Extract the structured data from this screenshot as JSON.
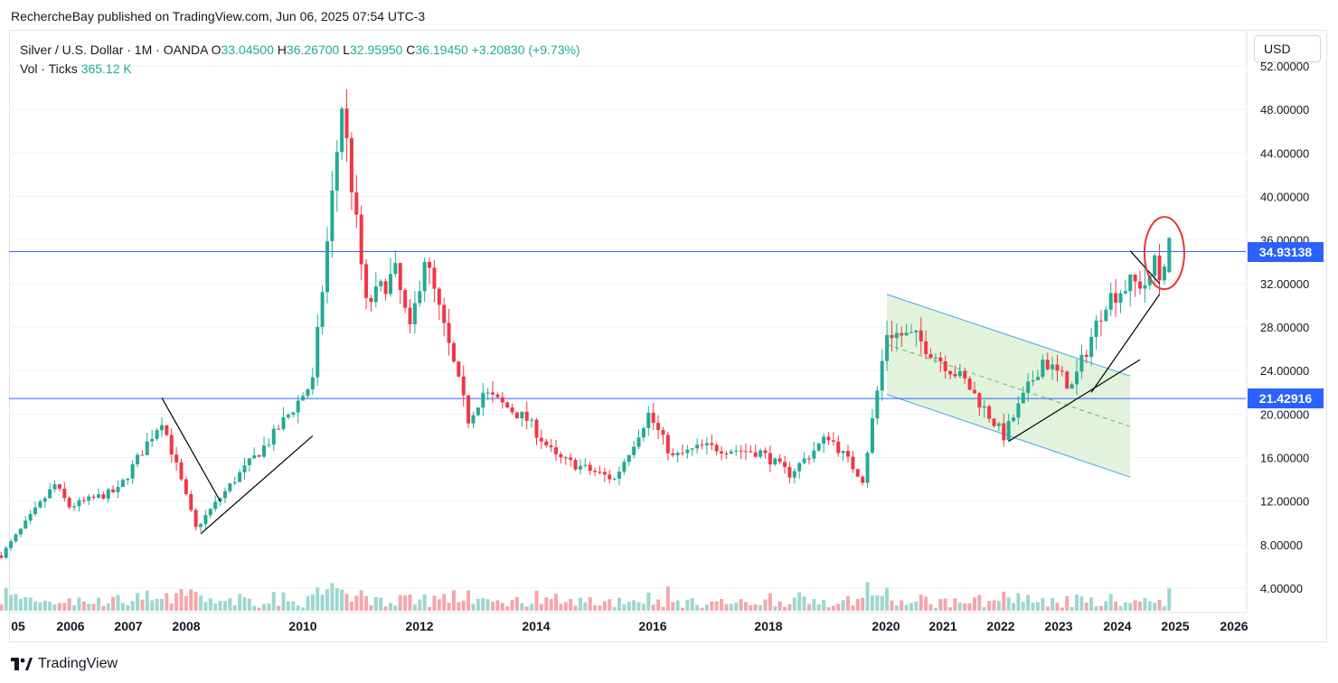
{
  "header": {
    "published": "RechercheBay published on TradingView.com, Jun 06, 2025 07:54 UTC-3"
  },
  "legend": {
    "symbol": "Silver / U.S. Dollar · 1M · OANDA",
    "o_label": "O",
    "o_value": "33.04500",
    "h_label": "H",
    "h_value": "36.26700",
    "l_label": "L",
    "l_value": "32.95950",
    "c_label": "C",
    "c_value": "36.19450",
    "change": "+3.20830 (+9.73%)",
    "vol_label": "Vol · Ticks",
    "vol_value": "365.12 K"
  },
  "currency_button": "USD",
  "footer": {
    "brand": "TradingView"
  },
  "colors": {
    "up": "#22ab94",
    "down": "#f23645",
    "vol_up": "#9ed7cf",
    "vol_down": "#f5a6ab",
    "hline": "#2962ff",
    "channel_fill": "#d9efcf",
    "channel_edge": "#42a5f5",
    "circle": "#e53935",
    "trendline": "#000000"
  },
  "chart_data": {
    "type": "candlestick",
    "timeframe": "1M",
    "ylim": [
      0,
      52
    ],
    "y_ticks": [
      "4.00000",
      "8.00000",
      "12.00000",
      "16.00000",
      "20.00000",
      "24.00000",
      "28.00000",
      "32.00000",
      "36.00000",
      "40.00000",
      "44.00000",
      "48.00000",
      "52.00000"
    ],
    "x_ticks": [
      "05",
      "2006",
      "2007",
      "2008",
      "2010",
      "2012",
      "2014",
      "2016",
      "2018",
      "2020",
      "2021",
      "2022",
      "2023",
      "2024",
      "2025",
      "2026"
    ],
    "horizontal_levels": [
      {
        "value": 34.93138,
        "label": "34.93138"
      },
      {
        "value": 21.42916,
        "label": "21.42916"
      }
    ],
    "price_anchors": [
      {
        "date": "2005-06",
        "price": 7.0
      },
      {
        "date": "2006-05",
        "price": 13.5
      },
      {
        "date": "2006-08",
        "price": 11.5
      },
      {
        "date": "2007-06",
        "price": 13.0
      },
      {
        "date": "2008-03",
        "price": 19.5
      },
      {
        "date": "2008-10",
        "price": 9.5
      },
      {
        "date": "2009-06",
        "price": 14.0
      },
      {
        "date": "2010-01",
        "price": 17.5
      },
      {
        "date": "2010-10",
        "price": 23.0
      },
      {
        "date": "2011-04",
        "price": 48.5
      },
      {
        "date": "2011-09",
        "price": 30.0
      },
      {
        "date": "2012-03",
        "price": 33.0
      },
      {
        "date": "2012-06",
        "price": 27.5
      },
      {
        "date": "2012-09",
        "price": 34.5
      },
      {
        "date": "2013-06",
        "price": 19.5
      },
      {
        "date": "2013-09",
        "price": 22.0
      },
      {
        "date": "2014-06",
        "price": 19.5
      },
      {
        "date": "2014-12",
        "price": 16.0
      },
      {
        "date": "2015-12",
        "price": 14.0
      },
      {
        "date": "2016-07",
        "price": 20.0
      },
      {
        "date": "2016-12",
        "price": 16.0
      },
      {
        "date": "2017-06",
        "price": 17.0
      },
      {
        "date": "2018-06",
        "price": 16.5
      },
      {
        "date": "2018-12",
        "price": 14.5
      },
      {
        "date": "2019-08",
        "price": 18.0
      },
      {
        "date": "2020-03",
        "price": 14.0
      },
      {
        "date": "2020-08",
        "price": 27.5
      },
      {
        "date": "2021-02",
        "price": 27.0
      },
      {
        "date": "2021-12",
        "price": 23.0
      },
      {
        "date": "2022-08",
        "price": 18.0
      },
      {
        "date": "2023-04",
        "price": 25.0
      },
      {
        "date": "2023-10",
        "price": 22.5
      },
      {
        "date": "2024-05",
        "price": 30.5
      },
      {
        "date": "2024-10",
        "price": 32.0
      },
      {
        "date": "2025-02",
        "price": 32.0
      },
      {
        "date": "2025-03",
        "price": 34.5
      },
      {
        "date": "2025-04",
        "price": 32.5
      },
      {
        "date": "2025-06",
        "price": 36.19
      }
    ],
    "volume_unit": "ticks",
    "annotations": [
      {
        "type": "trendline",
        "from": {
          "date": "2008-03",
          "price": 21.5
        },
        "to": {
          "date": "2009-03",
          "price": 12.0
        }
      },
      {
        "type": "trendline",
        "from": {
          "date": "2008-11",
          "price": 9.0
        },
        "to": {
          "date": "2010-10",
          "price": 18.0
        }
      },
      {
        "type": "channel",
        "upper": {
          "from": {
            "date": "2020-08",
            "price": 31.0
          },
          "to": {
            "date": "2024-10",
            "price": 23.5
          }
        },
        "lower": {
          "from": {
            "date": "2020-08",
            "price": 21.8
          },
          "to": {
            "date": "2024-10",
            "price": 14.2
          }
        }
      },
      {
        "type": "trendline",
        "from": {
          "date": "2022-09",
          "price": 17.5
        },
        "to": {
          "date": "2024-12",
          "price": 25.0
        }
      },
      {
        "type": "trendline",
        "from": {
          "date": "2024-02",
          "price": 22.0
        },
        "to": {
          "date": "2025-04",
          "price": 31.0
        }
      },
      {
        "type": "trendline",
        "from": {
          "date": "2024-10",
          "price": 35.0
        },
        "to": {
          "date": "2025-04",
          "price": 32.0
        }
      },
      {
        "type": "circle",
        "center": {
          "date": "2025-05",
          "price": 34.8
        }
      }
    ]
  }
}
